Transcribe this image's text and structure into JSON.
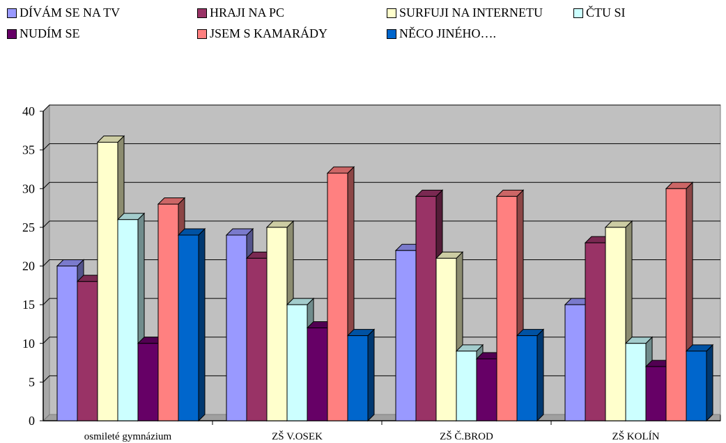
{
  "chart_data": {
    "type": "bar",
    "title": "",
    "xlabel": "",
    "ylabel": "",
    "ylim": [
      0,
      40
    ],
    "yticks": [
      0,
      5,
      10,
      15,
      20,
      25,
      30,
      35,
      40
    ],
    "grid": true,
    "legend_position": "top",
    "background_color": "#c0c0c0",
    "categories": [
      "osmileté gymnázium",
      "ZŠ V.OSEK",
      "ZŠ Č.BROD",
      "ZŠ KOLÍN"
    ],
    "series": [
      {
        "name": "DÍVÁM SE NA TV",
        "color": "#9999ff",
        "values": [
          20,
          24,
          22,
          15
        ]
      },
      {
        "name": "HRAJI NA PC",
        "color": "#993366",
        "values": [
          18,
          21,
          29,
          23
        ]
      },
      {
        "name": "SURFUJI NA INTERNETU",
        "color": "#ffffcc",
        "values": [
          36,
          25,
          21,
          25
        ]
      },
      {
        "name": "ČTU SI",
        "color": "#ccffff",
        "values": [
          26,
          15,
          9,
          10
        ]
      },
      {
        "name": "NUDÍM SE",
        "color": "#660066",
        "values": [
          10,
          12,
          8,
          7
        ]
      },
      {
        "name": "JSEM S KAMARÁDY",
        "color": "#ff8080",
        "values": [
          28,
          32,
          29,
          30
        ]
      },
      {
        "name": "NĚCO JINÉHO….",
        "color": "#0066cc",
        "values": [
          24,
          11,
          11,
          9
        ]
      }
    ]
  }
}
